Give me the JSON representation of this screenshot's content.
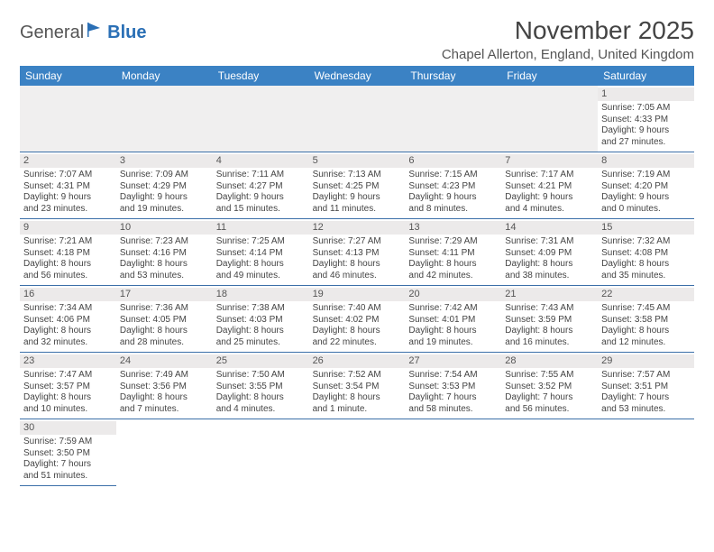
{
  "logo": {
    "part1": "General",
    "part2": "Blue"
  },
  "header": {
    "month_title": "November 2025",
    "location": "Chapel Allerton, England, United Kingdom"
  },
  "colors": {
    "header_bg": "#3b82c4",
    "header_text": "#ffffff",
    "daynum_bg": "#eceaea",
    "border": "#3b6fa8",
    "text": "#444444",
    "logo_blue": "#2a6fb5"
  },
  "weekdays": [
    "Sunday",
    "Monday",
    "Tuesday",
    "Wednesday",
    "Thursday",
    "Friday",
    "Saturday"
  ],
  "days": [
    {
      "n": 1,
      "sunrise": "Sunrise: 7:05 AM",
      "sunset": "Sunset: 4:33 PM",
      "day1": "Daylight: 9 hours",
      "day2": "and 27 minutes."
    },
    {
      "n": 2,
      "sunrise": "Sunrise: 7:07 AM",
      "sunset": "Sunset: 4:31 PM",
      "day1": "Daylight: 9 hours",
      "day2": "and 23 minutes."
    },
    {
      "n": 3,
      "sunrise": "Sunrise: 7:09 AM",
      "sunset": "Sunset: 4:29 PM",
      "day1": "Daylight: 9 hours",
      "day2": "and 19 minutes."
    },
    {
      "n": 4,
      "sunrise": "Sunrise: 7:11 AM",
      "sunset": "Sunset: 4:27 PM",
      "day1": "Daylight: 9 hours",
      "day2": "and 15 minutes."
    },
    {
      "n": 5,
      "sunrise": "Sunrise: 7:13 AM",
      "sunset": "Sunset: 4:25 PM",
      "day1": "Daylight: 9 hours",
      "day2": "and 11 minutes."
    },
    {
      "n": 6,
      "sunrise": "Sunrise: 7:15 AM",
      "sunset": "Sunset: 4:23 PM",
      "day1": "Daylight: 9 hours",
      "day2": "and 8 minutes."
    },
    {
      "n": 7,
      "sunrise": "Sunrise: 7:17 AM",
      "sunset": "Sunset: 4:21 PM",
      "day1": "Daylight: 9 hours",
      "day2": "and 4 minutes."
    },
    {
      "n": 8,
      "sunrise": "Sunrise: 7:19 AM",
      "sunset": "Sunset: 4:20 PM",
      "day1": "Daylight: 9 hours",
      "day2": "and 0 minutes."
    },
    {
      "n": 9,
      "sunrise": "Sunrise: 7:21 AM",
      "sunset": "Sunset: 4:18 PM",
      "day1": "Daylight: 8 hours",
      "day2": "and 56 minutes."
    },
    {
      "n": 10,
      "sunrise": "Sunrise: 7:23 AM",
      "sunset": "Sunset: 4:16 PM",
      "day1": "Daylight: 8 hours",
      "day2": "and 53 minutes."
    },
    {
      "n": 11,
      "sunrise": "Sunrise: 7:25 AM",
      "sunset": "Sunset: 4:14 PM",
      "day1": "Daylight: 8 hours",
      "day2": "and 49 minutes."
    },
    {
      "n": 12,
      "sunrise": "Sunrise: 7:27 AM",
      "sunset": "Sunset: 4:13 PM",
      "day1": "Daylight: 8 hours",
      "day2": "and 46 minutes."
    },
    {
      "n": 13,
      "sunrise": "Sunrise: 7:29 AM",
      "sunset": "Sunset: 4:11 PM",
      "day1": "Daylight: 8 hours",
      "day2": "and 42 minutes."
    },
    {
      "n": 14,
      "sunrise": "Sunrise: 7:31 AM",
      "sunset": "Sunset: 4:09 PM",
      "day1": "Daylight: 8 hours",
      "day2": "and 38 minutes."
    },
    {
      "n": 15,
      "sunrise": "Sunrise: 7:32 AM",
      "sunset": "Sunset: 4:08 PM",
      "day1": "Daylight: 8 hours",
      "day2": "and 35 minutes."
    },
    {
      "n": 16,
      "sunrise": "Sunrise: 7:34 AM",
      "sunset": "Sunset: 4:06 PM",
      "day1": "Daylight: 8 hours",
      "day2": "and 32 minutes."
    },
    {
      "n": 17,
      "sunrise": "Sunrise: 7:36 AM",
      "sunset": "Sunset: 4:05 PM",
      "day1": "Daylight: 8 hours",
      "day2": "and 28 minutes."
    },
    {
      "n": 18,
      "sunrise": "Sunrise: 7:38 AM",
      "sunset": "Sunset: 4:03 PM",
      "day1": "Daylight: 8 hours",
      "day2": "and 25 minutes."
    },
    {
      "n": 19,
      "sunrise": "Sunrise: 7:40 AM",
      "sunset": "Sunset: 4:02 PM",
      "day1": "Daylight: 8 hours",
      "day2": "and 22 minutes."
    },
    {
      "n": 20,
      "sunrise": "Sunrise: 7:42 AM",
      "sunset": "Sunset: 4:01 PM",
      "day1": "Daylight: 8 hours",
      "day2": "and 19 minutes."
    },
    {
      "n": 21,
      "sunrise": "Sunrise: 7:43 AM",
      "sunset": "Sunset: 3:59 PM",
      "day1": "Daylight: 8 hours",
      "day2": "and 16 minutes."
    },
    {
      "n": 22,
      "sunrise": "Sunrise: 7:45 AM",
      "sunset": "Sunset: 3:58 PM",
      "day1": "Daylight: 8 hours",
      "day2": "and 12 minutes."
    },
    {
      "n": 23,
      "sunrise": "Sunrise: 7:47 AM",
      "sunset": "Sunset: 3:57 PM",
      "day1": "Daylight: 8 hours",
      "day2": "and 10 minutes."
    },
    {
      "n": 24,
      "sunrise": "Sunrise: 7:49 AM",
      "sunset": "Sunset: 3:56 PM",
      "day1": "Daylight: 8 hours",
      "day2": "and 7 minutes."
    },
    {
      "n": 25,
      "sunrise": "Sunrise: 7:50 AM",
      "sunset": "Sunset: 3:55 PM",
      "day1": "Daylight: 8 hours",
      "day2": "and 4 minutes."
    },
    {
      "n": 26,
      "sunrise": "Sunrise: 7:52 AM",
      "sunset": "Sunset: 3:54 PM",
      "day1": "Daylight: 8 hours",
      "day2": "and 1 minute."
    },
    {
      "n": 27,
      "sunrise": "Sunrise: 7:54 AM",
      "sunset": "Sunset: 3:53 PM",
      "day1": "Daylight: 7 hours",
      "day2": "and 58 minutes."
    },
    {
      "n": 28,
      "sunrise": "Sunrise: 7:55 AM",
      "sunset": "Sunset: 3:52 PM",
      "day1": "Daylight: 7 hours",
      "day2": "and 56 minutes."
    },
    {
      "n": 29,
      "sunrise": "Sunrise: 7:57 AM",
      "sunset": "Sunset: 3:51 PM",
      "day1": "Daylight: 7 hours",
      "day2": "and 53 minutes."
    },
    {
      "n": 30,
      "sunrise": "Sunrise: 7:59 AM",
      "sunset": "Sunset: 3:50 PM",
      "day1": "Daylight: 7 hours",
      "day2": "and 51 minutes."
    }
  ],
  "layout": {
    "blanks_before": 6,
    "total_cells": 42
  }
}
